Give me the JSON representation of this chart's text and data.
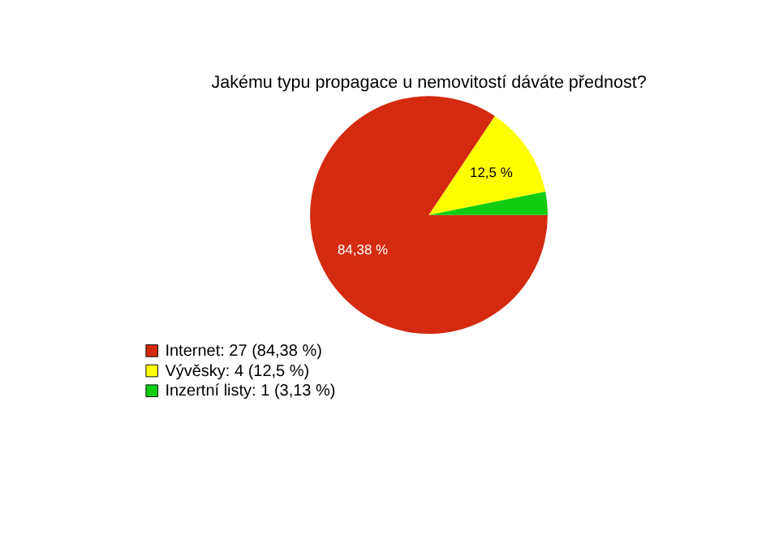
{
  "chart_data": {
    "type": "pie",
    "title": "Jakému typu propagace u nemovitostí dáváte přednost?",
    "categories": [
      "Internet: 27 (84,38 %)",
      "Vývěsky: 4 (12,5 %)",
      "Inzertní listy: 1 (3,13 %)"
    ],
    "values": [
      84.38,
      12.5,
      3.13
    ],
    "colors": [
      "#d42a10",
      "#ffff00",
      "#11cc11"
    ],
    "value_labels": [
      "84,38 %",
      "12,5 %",
      null
    ],
    "legend": "bottom left"
  }
}
